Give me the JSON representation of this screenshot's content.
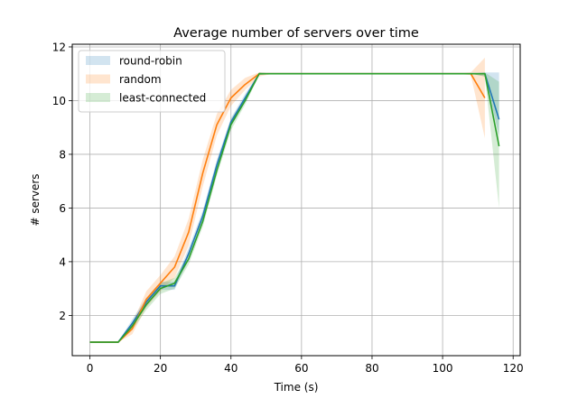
{
  "chart_data": {
    "type": "line",
    "title": "Average number of servers over time",
    "xlabel": "Time (s)",
    "ylabel": "# servers",
    "xlim": [
      -5,
      122
    ],
    "ylim": [
      0.5,
      12.1
    ],
    "xticks": [
      0,
      20,
      40,
      60,
      80,
      100,
      120
    ],
    "yticks": [
      2,
      4,
      6,
      8,
      10,
      12
    ],
    "grid": true,
    "legend_position": "top-left",
    "series": [
      {
        "name": "round-robin",
        "color": "#1f77b4",
        "x": [
          0,
          4,
          8,
          12,
          16,
          20,
          24,
          28,
          32,
          36,
          40,
          44,
          48,
          52,
          56,
          60,
          64,
          68,
          72,
          76,
          80,
          84,
          88,
          92,
          96,
          100,
          104,
          108,
          112,
          116
        ],
        "y": [
          1,
          1,
          1,
          1.7,
          2.5,
          3.1,
          3.1,
          4.3,
          5.7,
          7.6,
          9.2,
          10.1,
          11,
          11,
          11,
          11,
          11,
          11,
          11,
          11,
          11,
          11,
          11,
          11,
          11,
          11,
          11,
          11,
          11,
          9.3
        ],
        "lower": [
          1,
          1,
          1,
          1.55,
          2.35,
          2.95,
          2.95,
          4.1,
          5.5,
          7.4,
          9.05,
          9.95,
          10.95,
          11,
          11,
          11,
          11,
          11,
          11,
          11,
          11,
          11,
          11,
          11,
          11,
          11,
          11,
          11,
          10.9,
          8.7
        ],
        "upper": [
          1,
          1,
          1,
          1.85,
          2.65,
          3.25,
          3.25,
          4.5,
          5.9,
          7.8,
          9.35,
          10.25,
          11.05,
          11,
          11,
          11,
          11,
          11,
          11,
          11,
          11,
          11,
          11,
          11,
          11,
          11,
          11,
          11,
          11.05,
          11.05
        ]
      },
      {
        "name": "random",
        "color": "#ff7f0e",
        "x": [
          0,
          4,
          8,
          12,
          16,
          20,
          24,
          28,
          32,
          36,
          40,
          44,
          48,
          52,
          56,
          60,
          64,
          68,
          72,
          76,
          80,
          84,
          88,
          92,
          96,
          100,
          104,
          108,
          112
        ],
        "y": [
          1,
          1,
          1,
          1.5,
          2.6,
          3.2,
          3.8,
          5.1,
          7.3,
          9.1,
          10.1,
          10.6,
          11,
          11,
          11,
          11,
          11,
          11,
          11,
          11,
          11,
          11,
          11,
          11,
          11,
          11,
          11,
          11,
          10.1
        ],
        "lower": [
          1,
          1,
          1,
          1.3,
          2.3,
          2.9,
          3.4,
          4.6,
          6.8,
          8.7,
          9.8,
          10.4,
          10.9,
          11,
          11,
          11,
          11,
          11,
          11,
          11,
          11,
          11,
          11,
          11,
          11,
          11,
          11,
          10.95,
          8.6
        ],
        "upper": [
          1,
          1,
          1,
          1.7,
          2.9,
          3.5,
          4.2,
          5.6,
          7.8,
          9.5,
          10.4,
          10.85,
          11.05,
          11,
          11,
          11,
          11,
          11,
          11,
          11,
          11,
          11,
          11,
          11,
          11,
          11,
          11,
          11.05,
          11.6
        ]
      },
      {
        "name": "least-connected",
        "color": "#2ca02c",
        "x": [
          0,
          4,
          8,
          12,
          16,
          20,
          24,
          28,
          32,
          36,
          40,
          44,
          48,
          52,
          56,
          60,
          64,
          68,
          72,
          76,
          80,
          84,
          88,
          92,
          96,
          100,
          104,
          108,
          112,
          116
        ],
        "y": [
          1,
          1,
          1,
          1.6,
          2.4,
          3.0,
          3.2,
          4.1,
          5.5,
          7.4,
          9.1,
          10.0,
          11,
          11,
          11,
          11,
          11,
          11,
          11,
          11,
          11,
          11,
          11,
          11,
          11,
          11,
          11,
          11,
          11,
          8.3
        ],
        "lower": [
          1,
          1,
          1,
          1.45,
          2.2,
          2.8,
          3.0,
          3.9,
          5.3,
          7.2,
          8.9,
          9.85,
          10.95,
          11,
          11,
          11,
          11,
          11,
          11,
          11,
          11,
          11,
          11,
          11,
          11,
          11,
          11,
          11,
          10.9,
          6.0
        ],
        "upper": [
          1,
          1,
          1,
          1.75,
          2.6,
          3.2,
          3.4,
          4.3,
          5.7,
          7.6,
          9.3,
          10.15,
          11.05,
          11,
          11,
          11,
          11,
          11,
          11,
          11,
          11,
          11,
          11,
          11,
          11,
          11,
          11,
          11,
          11.05,
          10.7
        ]
      }
    ]
  }
}
